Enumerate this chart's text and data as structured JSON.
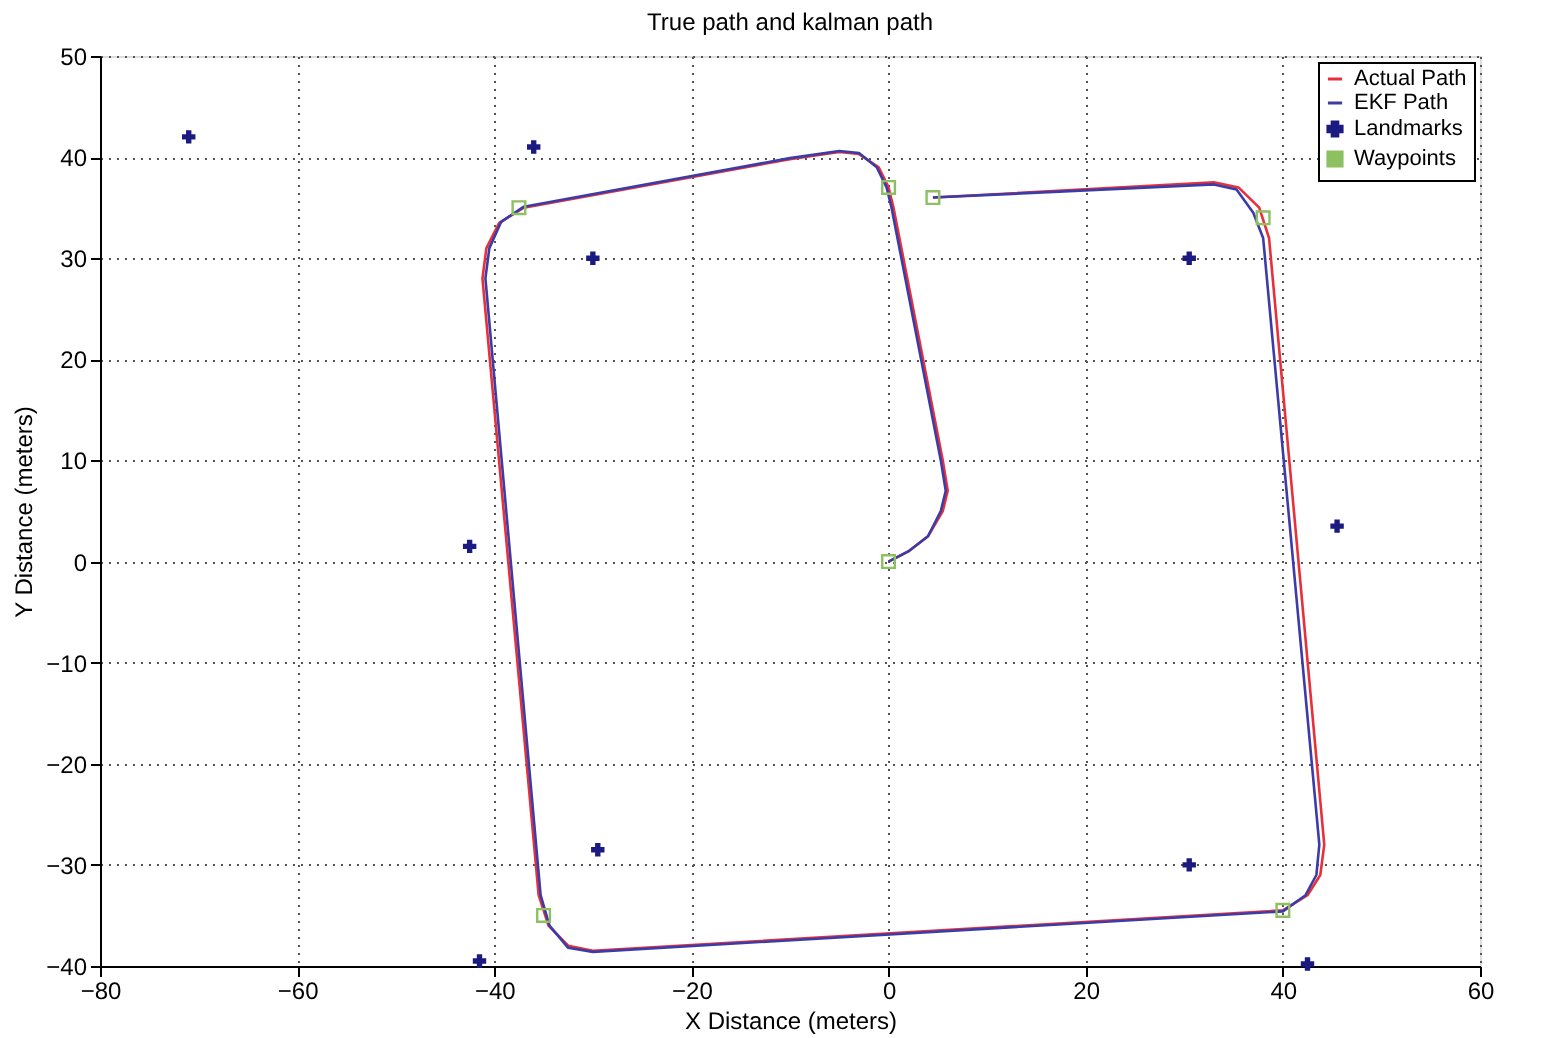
{
  "chart_data": {
    "type": "line",
    "title": "True path and kalman path",
    "xlabel": "X Distance (meters)",
    "ylabel": "Y Distance (meters)",
    "xlim": [
      -80,
      60
    ],
    "ylim": [
      -40,
      50
    ],
    "xticks": [
      -80,
      -60,
      -40,
      -20,
      0,
      20,
      40,
      60
    ],
    "yticks": [
      -40,
      -30,
      -20,
      -10,
      0,
      10,
      20,
      30,
      40,
      50
    ],
    "grid": true,
    "legend": "top right",
    "line_style": "solid",
    "series": [
      {
        "name": "Actual Path",
        "type": "line",
        "color": "#e8303a",
        "marker": "none",
        "x": [
          0,
          2,
          4,
          5.5,
          6,
          5.5,
          0.5,
          0,
          -1,
          -3,
          -5,
          -10,
          -37,
          -39.5,
          -40.8,
          -41.2,
          -35.5,
          -34.5,
          -32.5,
          -30,
          40,
          42.5,
          43.8,
          44.2,
          38.6,
          37.6,
          35.5,
          33,
          4.5
        ],
        "values": [
          0,
          1,
          2.5,
          5,
          7,
          10,
          35,
          37,
          39,
          40.3,
          40.5,
          39.8,
          35,
          33.5,
          31,
          28,
          -33,
          -36,
          -38,
          -38.5,
          -34.5,
          -33,
          -31,
          -28,
          32,
          35,
          37,
          37.5,
          36
        ]
      },
      {
        "name": "EKF Path",
        "type": "line",
        "color": "#3c3ca8",
        "marker": "none",
        "x": [
          0,
          2,
          4,
          5.3,
          5.8,
          5.3,
          0.3,
          -0.2,
          -1.2,
          -3,
          -5,
          -10,
          -37,
          -39.3,
          -40.5,
          -40.9,
          -35.3,
          -34.4,
          -32.5,
          -30,
          40,
          42.3,
          43.4,
          43.7,
          38,
          37,
          35.3,
          33,
          4.5
        ],
        "values": [
          0,
          1,
          2.5,
          5,
          7,
          10,
          35,
          37,
          39,
          40.4,
          40.6,
          39.9,
          35.1,
          33.6,
          31,
          28,
          -33,
          -36,
          -38.2,
          -38.6,
          -34.6,
          -33,
          -31,
          -28,
          32,
          34.5,
          36.8,
          37.3,
          36
        ]
      },
      {
        "name": "Landmarks",
        "type": "scatter",
        "color": "#1a1a80",
        "marker": "cross",
        "x": [
          -71,
          -36,
          -30,
          -42.5,
          -41.5,
          -29.5,
          30.5,
          45.5,
          30.5,
          42.5
        ],
        "values": [
          42,
          41,
          30,
          1.5,
          -39.5,
          -28.5,
          30,
          3.5,
          -30,
          -39.8
        ]
      },
      {
        "name": "Waypoints",
        "type": "scatter",
        "color": "#8cc060",
        "marker": "square",
        "x": [
          0,
          0,
          -37.5,
          -35,
          40,
          38,
          4.5
        ],
        "values": [
          0,
          37,
          35,
          -35,
          -34.5,
          34,
          36
        ]
      }
    ]
  }
}
